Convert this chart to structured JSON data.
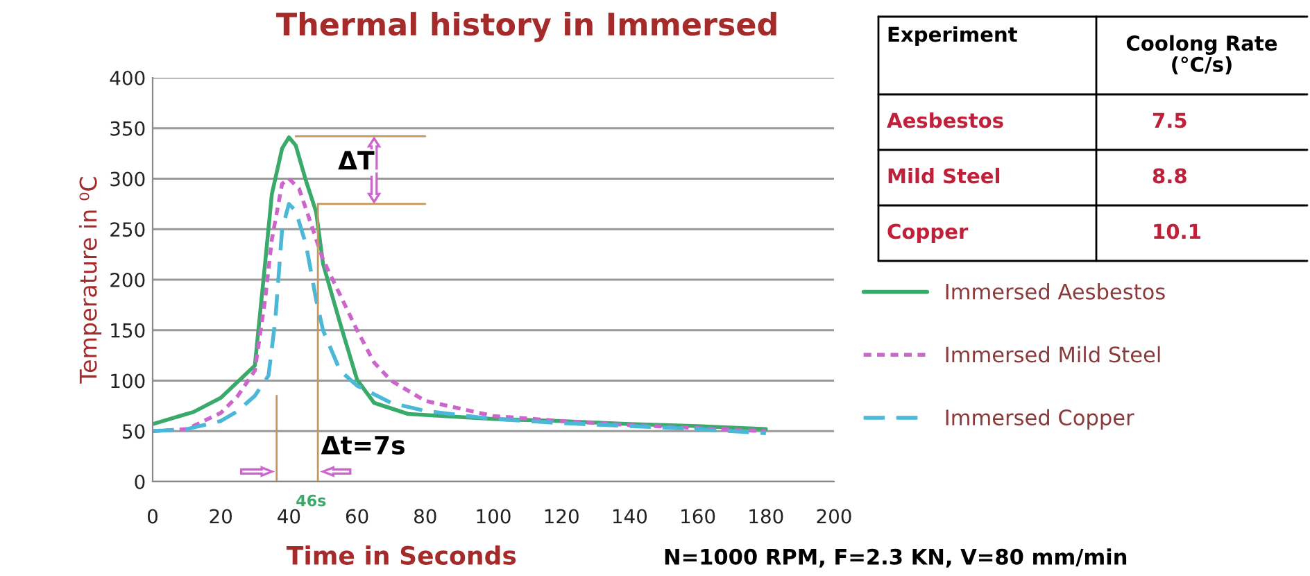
{
  "chart_data": {
    "type": "line",
    "title": "Thermal history in Immersed",
    "xlabel": "Time in Seconds",
    "ylabel": "Temperature in ⁰C",
    "xlim": [
      0,
      200
    ],
    "xticks": [
      0,
      20,
      40,
      60,
      80,
      100,
      120,
      140,
      160,
      180,
      200
    ],
    "ylim": [
      0,
      400
    ],
    "yticks": [
      0,
      50,
      100,
      150,
      200,
      250,
      300,
      350,
      400
    ],
    "grid": "y",
    "legend": "right",
    "marker": "none",
    "series": [
      {
        "name": "Immersed Aesbestos",
        "color": "#3aaa6a",
        "line_style": "solid",
        "x": [
          0,
          12,
          20,
          25,
          30,
          33,
          35,
          38,
          40,
          42,
          45,
          48,
          50,
          55,
          60,
          65,
          75,
          100,
          120,
          140,
          160,
          180
        ],
        "values": [
          57,
          69,
          83,
          99,
          115,
          216,
          285,
          330,
          341,
          333,
          298,
          267,
          216,
          157,
          101,
          78,
          67,
          62,
          60,
          57,
          55,
          52
        ]
      },
      {
        "name": "Immersed Mild Steel",
        "color": "#cc66cc",
        "line_style": "dotted",
        "x": [
          0,
          10,
          20,
          25,
          30,
          33,
          35,
          38,
          40,
          43,
          46,
          50,
          55,
          60,
          65,
          70,
          80,
          100,
          120,
          140,
          160,
          180
        ],
        "values": [
          50,
          52,
          68,
          85,
          110,
          180,
          240,
          295,
          300,
          290,
          260,
          220,
          185,
          150,
          118,
          100,
          80,
          65,
          60,
          56,
          53,
          50
        ]
      },
      {
        "name": "Immersed Copper",
        "color": "#4bb8d8",
        "line_style": "dashed",
        "x": [
          0,
          10,
          20,
          25,
          30,
          34,
          36,
          38,
          40,
          42,
          45,
          48,
          50,
          55,
          60,
          70,
          80,
          100,
          120,
          140,
          160,
          180
        ],
        "values": [
          50,
          52,
          60,
          70,
          85,
          105,
          160,
          250,
          275,
          268,
          235,
          180,
          150,
          110,
          95,
          78,
          70,
          62,
          58,
          55,
          52,
          48
        ]
      }
    ],
    "annotations": [
      "Experiment",
      "Coolong Rate (°C/s)",
      "Aesbestos",
      "7.5",
      "Mild Steel",
      "8.8",
      "Copper",
      "10.1",
      "ΔT",
      "Δt=7s",
      "46s",
      "N=1000 RPM, F=2.3 KN, V=80 mm/min"
    ]
  }
}
